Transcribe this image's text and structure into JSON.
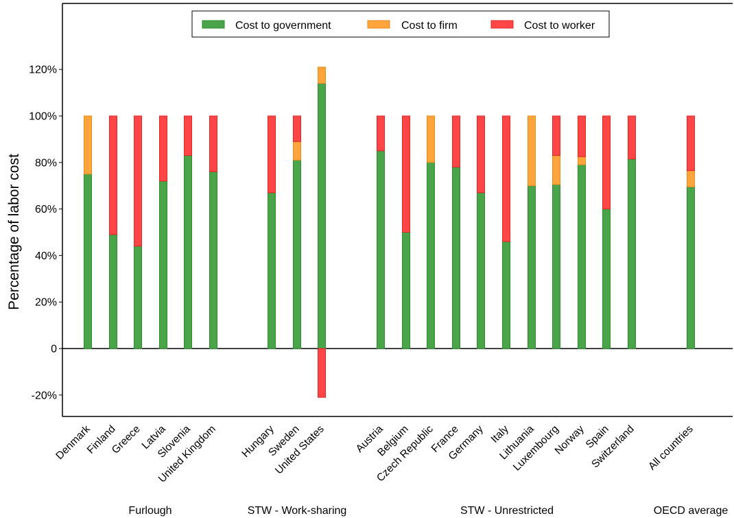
{
  "chart_data": {
    "type": "bar",
    "stacked": true,
    "ylabel": "Percentage of labor cost",
    "ylim": [
      -30,
      150
    ],
    "yticks": [
      {
        "v": -20,
        "label": "-20%"
      },
      {
        "v": 0,
        "label": "0"
      },
      {
        "v": 20,
        "label": "20%"
      },
      {
        "v": 40,
        "label": "40%"
      },
      {
        "v": 60,
        "label": "60%"
      },
      {
        "v": 80,
        "label": "80%"
      },
      {
        "v": 100,
        "label": "100%"
      },
      {
        "v": 120,
        "label": "120%"
      }
    ],
    "legend": {
      "position": "top-center",
      "entries": [
        {
          "name": "Cost to government",
          "color": "#4aa54a"
        },
        {
          "name": "Cost to firm",
          "color": "#ffa53c"
        },
        {
          "name": "Cost to worker",
          "color": "#ff4646"
        }
      ]
    },
    "groups": [
      {
        "label": "Furlough",
        "countries": [
          "Denmark",
          "Finland",
          "Greece",
          "Latvia",
          "Slovenia",
          "United Kingdom"
        ]
      },
      {
        "label": "STW - Work-sharing",
        "countries": [
          "Hungary",
          "Sweden",
          "United States"
        ]
      },
      {
        "label": "STW - Unrestricted",
        "countries": [
          "Austria",
          "Belgium",
          "Czech Republic",
          "France",
          "Germany",
          "Italy",
          "Lithuania",
          "Luxembourg",
          "Norway",
          "Spain",
          "Switzerland"
        ]
      },
      {
        "label": "OECD average",
        "countries": [
          "All countries"
        ]
      }
    ],
    "categories": [
      "Denmark",
      "Finland",
      "Greece",
      "Latvia",
      "Slovenia",
      "United Kingdom",
      "Hungary",
      "Sweden",
      "United States",
      "Austria",
      "Belgium",
      "Czech Republic",
      "France",
      "Germany",
      "Italy",
      "Lithuania",
      "Luxembourg",
      "Norway",
      "Spain",
      "Switzerland",
      "All countries"
    ],
    "series": [
      {
        "name": "Cost to government",
        "color": "#4aa54a",
        "values": [
          75,
          49,
          44,
          72,
          83,
          76,
          67,
          81,
          114,
          85,
          50,
          80,
          78,
          67,
          46,
          70,
          70.5,
          79,
          60,
          81.5,
          69.5
        ]
      },
      {
        "name": "Cost to firm",
        "color": "#ffa53c",
        "values": [
          25,
          0,
          0,
          0,
          0,
          0,
          0,
          8,
          7,
          0,
          0,
          20,
          0,
          0,
          0,
          30,
          12.5,
          3.5,
          0,
          0,
          7
        ]
      },
      {
        "name": "Cost to worker",
        "color": "#ff4646",
        "values": [
          0,
          51,
          56,
          28,
          17,
          24,
          33,
          11,
          -21,
          15,
          50,
          0,
          22,
          33,
          54,
          0,
          17,
          17.5,
          40,
          18.5,
          23.5
        ]
      }
    ],
    "grid": false
  }
}
